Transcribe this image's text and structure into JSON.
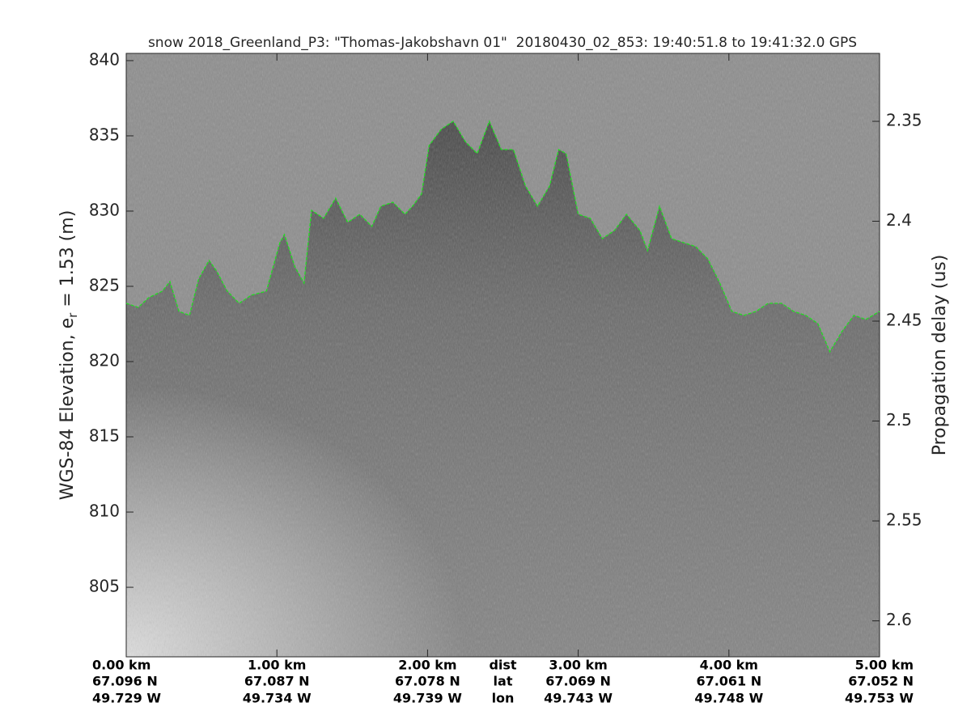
{
  "chart_data": {
    "type": "echogram",
    "title": "snow 2018_Greenland_P3: \"Thomas-Jakobshavn 01\"  20180430_02_853: 19:40:51.8 to 19:41:32.0 GPS",
    "ylabel": "WGS-84 Elevation, e",
    "ylabel_sub": "r",
    "ylabel_after": " = 1.53 (m)",
    "y2label": "Propagation delay (us)",
    "xlim": [
      0,
      5
    ],
    "ylim": [
      800.38,
      840.48
    ],
    "y2lim": [
      2.618,
      2.316
    ],
    "yticks": [
      805,
      810,
      815,
      820,
      825,
      830,
      835,
      840
    ],
    "y2ticks": [
      2.35,
      2.4,
      2.45,
      2.5,
      2.55,
      2.6
    ],
    "xticks": [
      {
        "value": 0,
        "label": "0.00 km"
      },
      {
        "value": 1,
        "label": "1.00 km"
      },
      {
        "value": 2,
        "label": "2.00 km"
      },
      {
        "value": 3,
        "label": "3.00 km"
      },
      {
        "value": 4,
        "label": "4.00 km"
      },
      {
        "value": 5,
        "label": "5.00 km"
      }
    ],
    "lat_labels": [
      "67.096 N",
      "67.087 N",
      "67.078 N",
      "67.069 N",
      "67.061 N",
      "67.052 N"
    ],
    "lon_labels": [
      "49.729 W",
      "49.734 W",
      "49.739 W",
      "49.743 W",
      "49.748 W",
      "49.753 W"
    ],
    "row_labels": [
      "dist",
      "lat",
      "lon"
    ],
    "line_style": "dashed",
    "color": "#22dd22",
    "x": [
      0.0,
      0.08,
      0.15,
      0.24,
      0.29,
      0.35,
      0.42,
      0.48,
      0.55,
      0.6,
      0.67,
      0.75,
      0.83,
      0.93,
      1.02,
      1.05,
      1.12,
      1.18,
      1.23,
      1.31,
      1.39,
      1.47,
      1.55,
      1.63,
      1.69,
      1.77,
      1.85,
      1.9,
      1.96,
      2.01,
      2.09,
      2.17,
      2.25,
      2.33,
      2.41,
      2.49,
      2.57,
      2.65,
      2.73,
      2.81,
      2.87,
      2.92,
      3.0,
      3.08,
      3.16,
      3.24,
      3.32,
      3.41,
      3.46,
      3.54,
      3.62,
      3.7,
      3.78,
      3.86,
      3.94,
      4.02,
      4.1,
      4.18,
      4.26,
      4.35,
      4.43,
      4.51,
      4.59,
      4.67,
      4.75,
      4.83,
      4.91,
      5.0
    ],
    "values": [
      823.87,
      823.6,
      824.25,
      824.68,
      825.32,
      823.33,
      823.07,
      825.48,
      826.72,
      826.02,
      824.68,
      823.87,
      824.41,
      824.68,
      827.9,
      828.44,
      826.29,
      825.22,
      830.05,
      829.52,
      830.86,
      829.25,
      829.79,
      828.98,
      830.32,
      830.59,
      829.79,
      830.32,
      831.13,
      834.36,
      835.43,
      835.97,
      834.62,
      833.82,
      835.97,
      834.09,
      834.09,
      831.67,
      830.32,
      831.67,
      834.09,
      833.82,
      829.79,
      829.52,
      828.17,
      828.71,
      829.79,
      828.71,
      827.37,
      830.32,
      828.17,
      827.9,
      827.64,
      826.83,
      825.22,
      823.33,
      823.07,
      823.33,
      823.87,
      823.87,
      823.33,
      823.07,
      822.53,
      820.65,
      821.99,
      823.07,
      822.8,
      823.33
    ]
  }
}
